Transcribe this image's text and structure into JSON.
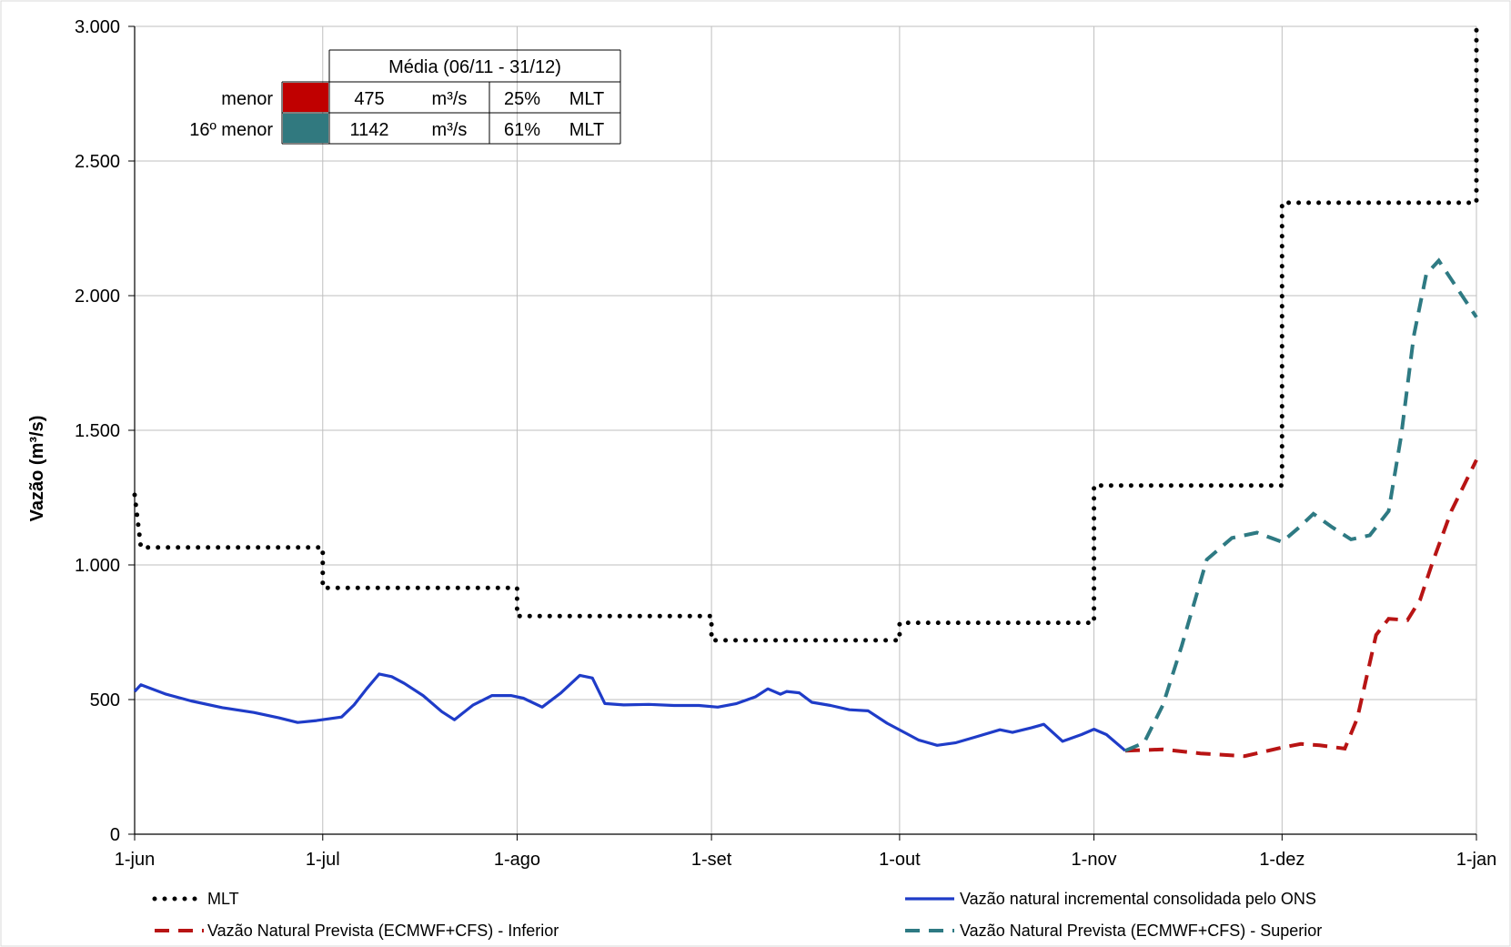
{
  "chart_data": {
    "type": "line",
    "ylabel": "Vazão (m³/s)",
    "ylim": [
      0,
      3000
    ],
    "y_ticks": [
      {
        "value": 0,
        "label": "0"
      },
      {
        "value": 500,
        "label": "500"
      },
      {
        "value": 1000,
        "label": "1.000"
      },
      {
        "value": 1500,
        "label": "1.500"
      },
      {
        "value": 2000,
        "label": "2.000"
      },
      {
        "value": 2500,
        "label": "2.500"
      },
      {
        "value": 3000,
        "label": "3.000"
      }
    ],
    "xlim": [
      "2023-06-01",
      "2024-01-01"
    ],
    "x_ticks": [
      {
        "date": "2023-06-01",
        "label": "1-jun"
      },
      {
        "date": "2023-07-01",
        "label": "1-jul"
      },
      {
        "date": "2023-08-01",
        "label": "1-ago"
      },
      {
        "date": "2023-09-01",
        "label": "1-set"
      },
      {
        "date": "2023-10-01",
        "label": "1-out"
      },
      {
        "date": "2023-11-01",
        "label": "1-nov"
      },
      {
        "date": "2023-12-01",
        "label": "1-dez"
      },
      {
        "date": "2024-01-01",
        "label": "1-jan"
      }
    ],
    "grid": true,
    "legend_position": "bottom",
    "series": [
      {
        "name": "MLT",
        "color": "#000000",
        "style": "dotted",
        "step": true,
        "points": [
          [
            "2023-06-01",
            1260
          ],
          [
            "2023-06-02",
            1065
          ],
          [
            "2023-07-01",
            1065
          ],
          [
            "2023-07-01",
            915
          ],
          [
            "2023-08-01",
            915
          ],
          [
            "2023-08-01",
            810
          ],
          [
            "2023-09-01",
            810
          ],
          [
            "2023-09-01",
            720
          ],
          [
            "2023-10-01",
            720
          ],
          [
            "2023-10-01",
            785
          ],
          [
            "2023-11-01",
            785
          ],
          [
            "2023-11-01",
            1295
          ],
          [
            "2023-12-01",
            1295
          ],
          [
            "2023-12-01",
            2345
          ],
          [
            "2024-01-01",
            2345
          ],
          [
            "2024-01-01",
            3000
          ]
        ]
      },
      {
        "name": "Vazão natural incremental consolidada pelo ONS",
        "color": "#1f3cc8",
        "style": "solid",
        "points": [
          [
            "2023-06-01",
            530
          ],
          [
            "2023-06-02",
            555
          ],
          [
            "2023-06-06",
            520
          ],
          [
            "2023-06-10",
            495
          ],
          [
            "2023-06-15",
            470
          ],
          [
            "2023-06-20",
            452
          ],
          [
            "2023-06-24",
            432
          ],
          [
            "2023-06-27",
            415
          ],
          [
            "2023-06-30",
            422
          ],
          [
            "2023-07-04",
            435
          ],
          [
            "2023-07-06",
            480
          ],
          [
            "2023-07-08",
            540
          ],
          [
            "2023-07-10",
            595
          ],
          [
            "2023-07-12",
            585
          ],
          [
            "2023-07-14",
            560
          ],
          [
            "2023-07-17",
            515
          ],
          [
            "2023-07-20",
            455
          ],
          [
            "2023-07-22",
            425
          ],
          [
            "2023-07-25",
            480
          ],
          [
            "2023-07-28",
            515
          ],
          [
            "2023-07-31",
            515
          ],
          [
            "2023-08-02",
            505
          ],
          [
            "2023-08-05",
            472
          ],
          [
            "2023-08-08",
            525
          ],
          [
            "2023-08-11",
            590
          ],
          [
            "2023-08-13",
            580
          ],
          [
            "2023-08-15",
            485
          ],
          [
            "2023-08-18",
            480
          ],
          [
            "2023-08-22",
            482
          ],
          [
            "2023-08-26",
            478
          ],
          [
            "2023-08-30",
            478
          ],
          [
            "2023-09-02",
            472
          ],
          [
            "2023-09-05",
            485
          ],
          [
            "2023-09-08",
            510
          ],
          [
            "2023-09-10",
            540
          ],
          [
            "2023-09-12",
            520
          ],
          [
            "2023-09-13",
            530
          ],
          [
            "2023-09-15",
            525
          ],
          [
            "2023-09-17",
            490
          ],
          [
            "2023-09-20",
            478
          ],
          [
            "2023-09-23",
            462
          ],
          [
            "2023-09-26",
            458
          ],
          [
            "2023-09-29",
            412
          ],
          [
            "2023-10-02",
            375
          ],
          [
            "2023-10-04",
            350
          ],
          [
            "2023-10-07",
            330
          ],
          [
            "2023-10-10",
            340
          ],
          [
            "2023-10-13",
            360
          ],
          [
            "2023-10-17",
            388
          ],
          [
            "2023-10-19",
            378
          ],
          [
            "2023-10-22",
            395
          ],
          [
            "2023-10-24",
            408
          ],
          [
            "2023-10-27",
            345
          ],
          [
            "2023-10-30",
            370
          ],
          [
            "2023-11-01",
            390
          ],
          [
            "2023-11-03",
            370
          ],
          [
            "2023-11-06",
            310
          ]
        ]
      },
      {
        "name": "Vazão Natural Prevista (ECMWF+CFS) - Inferior",
        "color": "#b81414",
        "style": "dashed",
        "points": [
          [
            "2023-11-06",
            310
          ],
          [
            "2023-11-12",
            315
          ],
          [
            "2023-11-18",
            300
          ],
          [
            "2023-11-25",
            290
          ],
          [
            "2023-12-01",
            322
          ],
          [
            "2023-12-04",
            335
          ],
          [
            "2023-12-07",
            330
          ],
          [
            "2023-12-11",
            318
          ],
          [
            "2023-12-13",
            430
          ],
          [
            "2023-12-16",
            740
          ],
          [
            "2023-12-18",
            800
          ],
          [
            "2023-12-21",
            795
          ],
          [
            "2023-12-23",
            870
          ],
          [
            "2023-12-25",
            1010
          ],
          [
            "2023-12-28",
            1200
          ],
          [
            "2024-01-01",
            1390
          ]
        ]
      },
      {
        "name": "Vazão Natural Prevista (ECMWF+CFS) - Superior",
        "color": "#2e7a83",
        "style": "dashed",
        "points": [
          [
            "2023-11-06",
            310
          ],
          [
            "2023-11-09",
            340
          ],
          [
            "2023-11-12",
            480
          ],
          [
            "2023-11-15",
            700
          ],
          [
            "2023-11-19",
            1020
          ],
          [
            "2023-11-23",
            1100
          ],
          [
            "2023-11-27",
            1120
          ],
          [
            "2023-12-01",
            1085
          ],
          [
            "2023-12-04",
            1145
          ],
          [
            "2023-12-06",
            1190
          ],
          [
            "2023-12-09",
            1140
          ],
          [
            "2023-12-12",
            1095
          ],
          [
            "2023-12-15",
            1110
          ],
          [
            "2023-12-18",
            1200
          ],
          [
            "2023-12-20",
            1480
          ],
          [
            "2023-12-22",
            1850
          ],
          [
            "2023-12-24",
            2080
          ],
          [
            "2023-12-26",
            2130
          ],
          [
            "2023-12-28",
            2060
          ],
          [
            "2024-01-01",
            1920
          ]
        ]
      }
    ],
    "inset_table": {
      "header": "Média (06/11 - 31/12)",
      "rows": [
        {
          "label": "menor",
          "color": "#c00000",
          "value": "475",
          "unit": "m³/s",
          "percent": "25%",
          "ref": "MLT"
        },
        {
          "label": "16º menor",
          "color": "#31797f",
          "value": "1142",
          "unit": "m³/s",
          "percent": "61%",
          "ref": "MLT"
        }
      ]
    }
  }
}
